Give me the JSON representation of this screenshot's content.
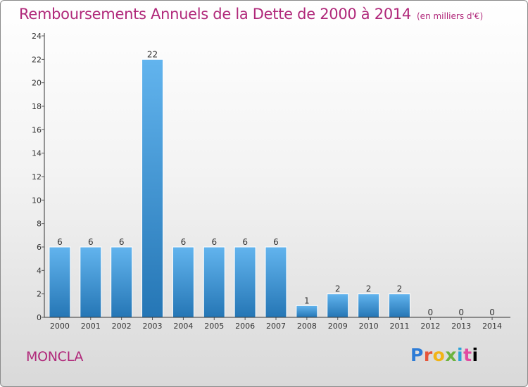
{
  "header": {
    "title": "Remboursements Annuels de la Dette de 2000 à 2014",
    "subtitle": "(en milliers d'€)"
  },
  "commune": "MONCLA",
  "logo": {
    "letters": [
      "P",
      "r",
      "o",
      "x",
      "i",
      "t",
      "i"
    ],
    "text": "Proxiti"
  },
  "colors": {
    "title": "#b0287a",
    "bar_light": "#62b4ee",
    "bar_dark": "#2576b5",
    "axis": "#333333",
    "grid_tick": "#555555"
  },
  "chart_data": {
    "type": "bar",
    "title": "Remboursements Annuels de la Dette de 2000 à 2014",
    "subtitle": "(en milliers d'€)",
    "categories": [
      "2000",
      "2001",
      "2002",
      "2003",
      "2004",
      "2005",
      "2006",
      "2007",
      "2008",
      "2009",
      "2010",
      "2011",
      "2012",
      "2013",
      "2014"
    ],
    "values": [
      6,
      6,
      6,
      22,
      6,
      6,
      6,
      6,
      1,
      2,
      2,
      2,
      0,
      0,
      0
    ],
    "ylim": [
      0,
      24
    ],
    "yticks": [
      0,
      2,
      4,
      6,
      8,
      10,
      12,
      14,
      16,
      18,
      20,
      22,
      24
    ],
    "xlabel": "",
    "ylabel": "",
    "grid": false,
    "legend": "none"
  }
}
